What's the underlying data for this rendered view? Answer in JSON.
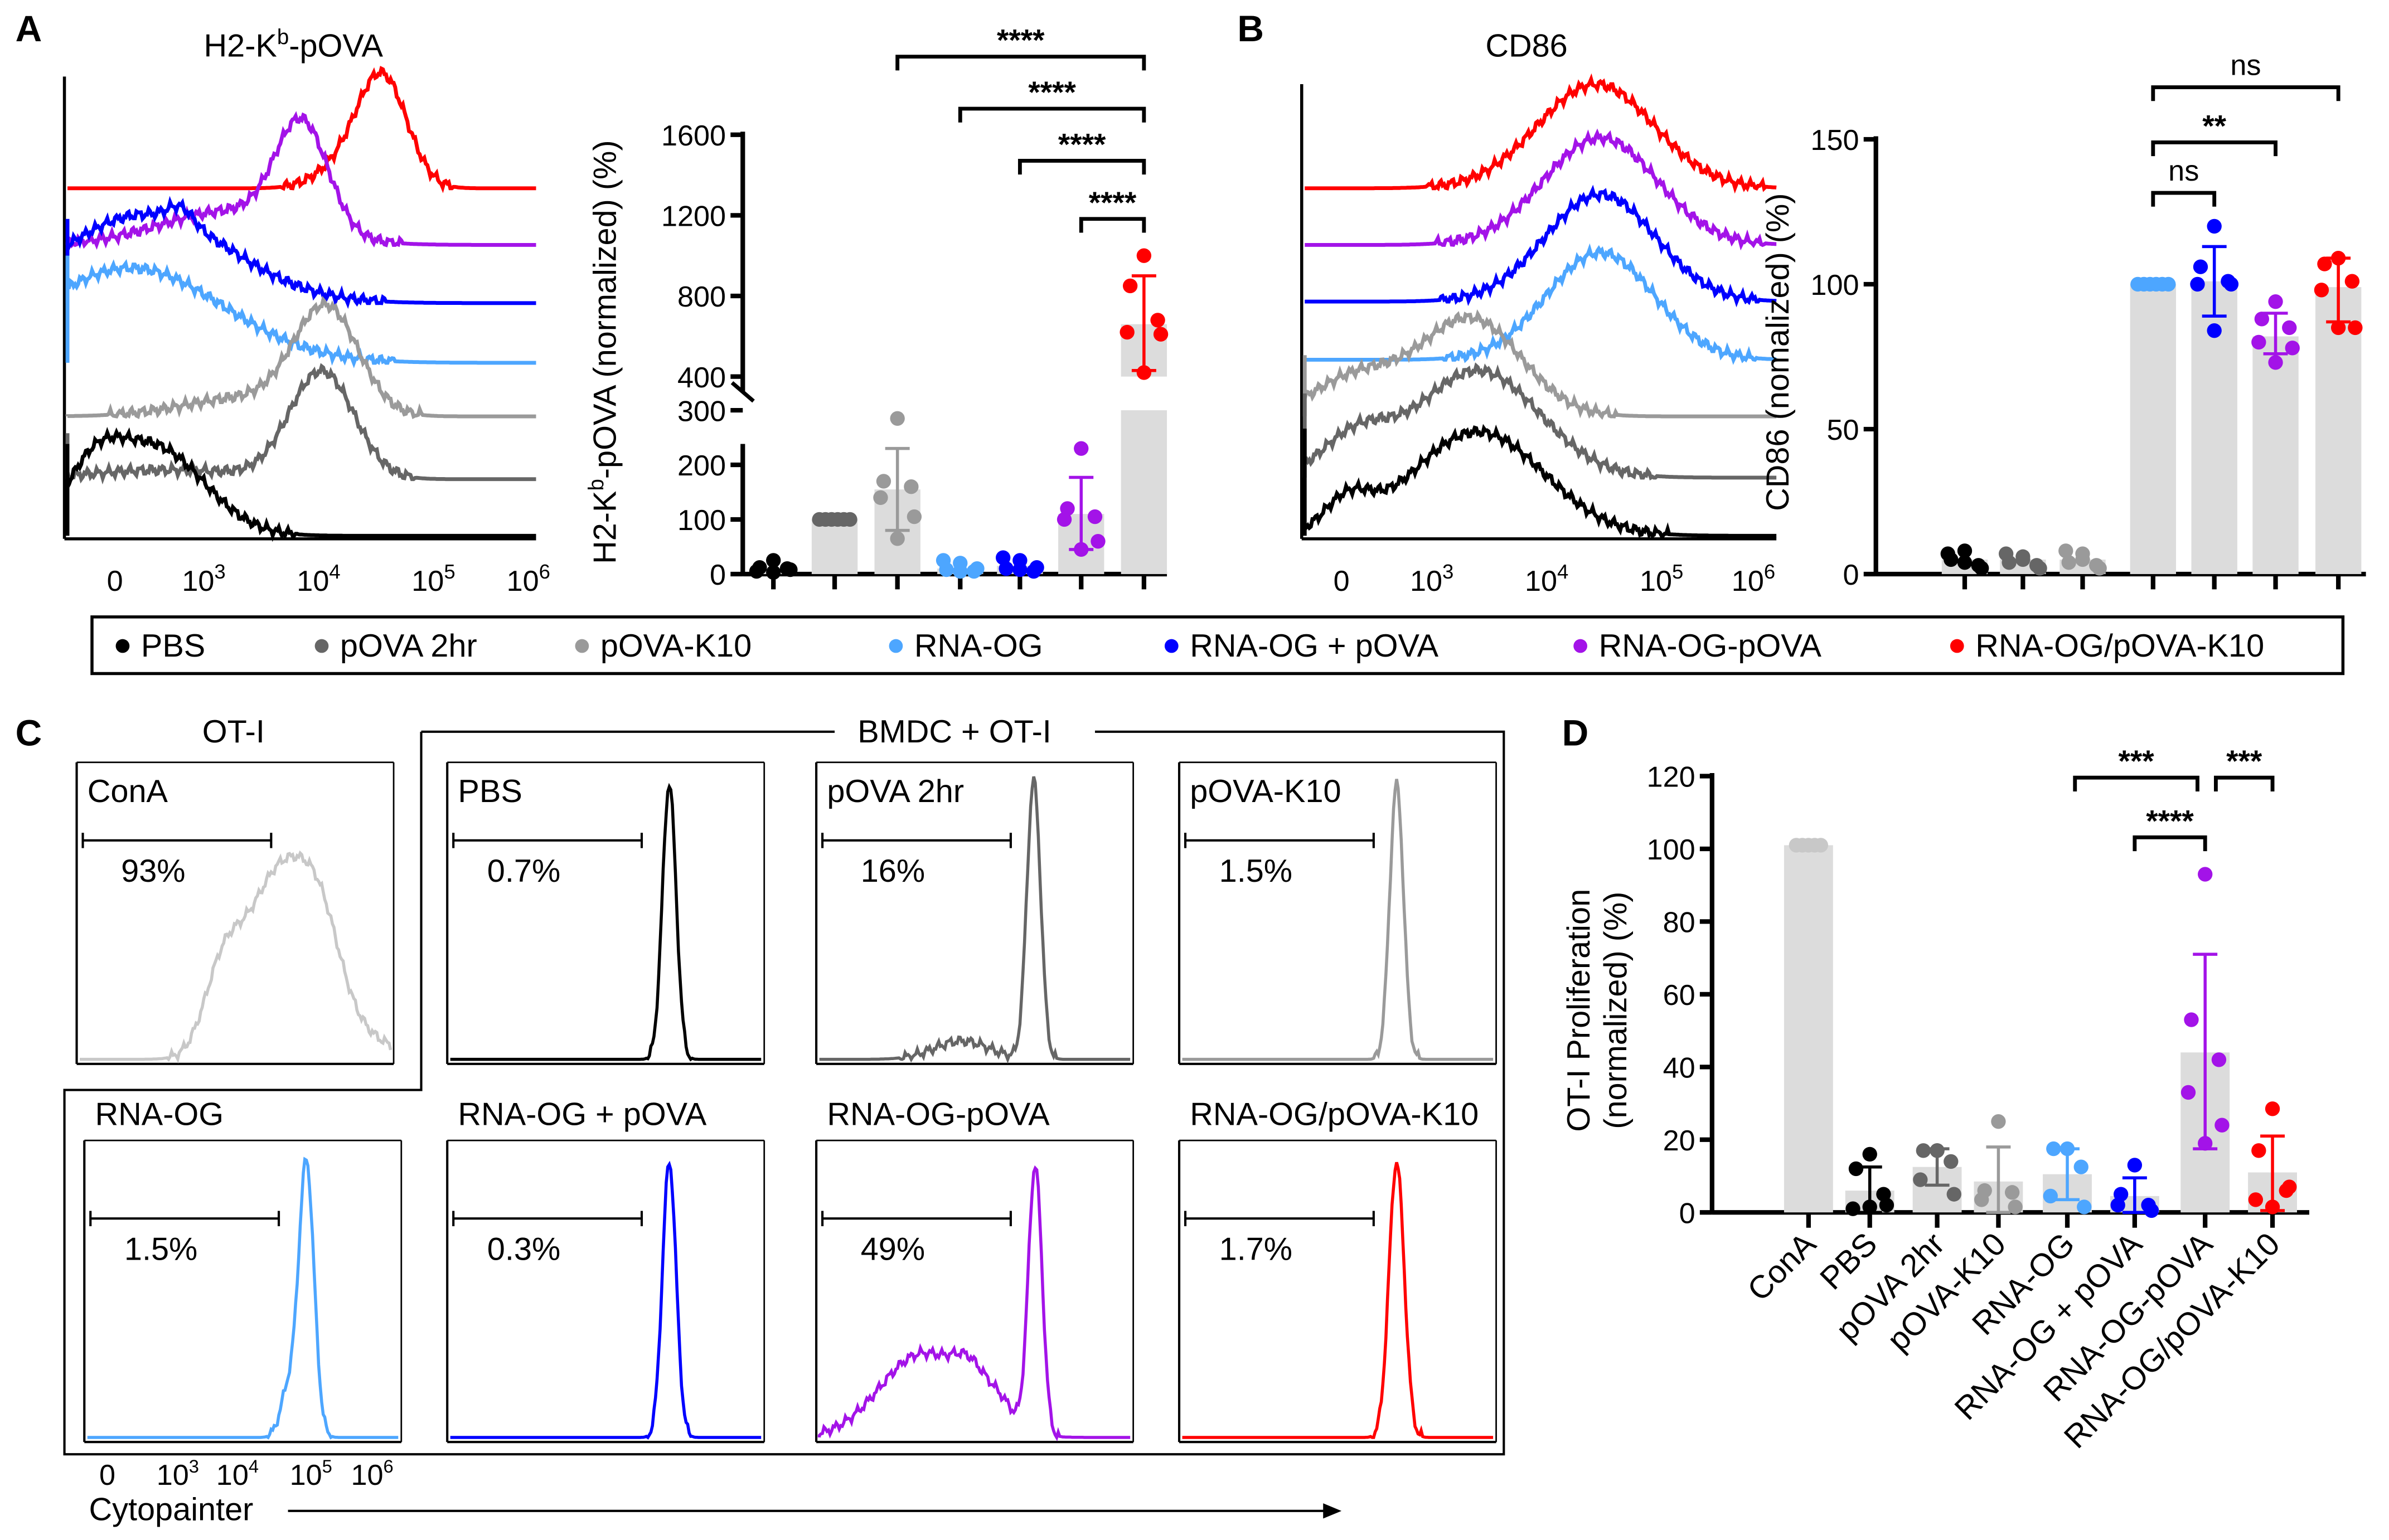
{
  "panels": {
    "a": "A",
    "b": "B",
    "c": "C",
    "d": "D"
  },
  "colors": {
    "PBS": "#000000",
    "pOVA 2hr": "#666666",
    "pOVA-K10": "#9a9a9a",
    "RNA-OG": "#4da6ff",
    "RNA-OG + pOVA": "#0000ff",
    "RNA-OG-pOVA": "#a313e8",
    "RNA-OG/pOVA-K10": "#ff0000",
    "bar": "#dcdcdc",
    "ConA": "#c8c8c8"
  },
  "legend": [
    "PBS",
    "pOVA 2hr",
    "pOVA-K10",
    "RNA-OG",
    "RNA-OG + pOVA",
    "RNA-OG-pOVA",
    "RNA-OG/pOVA-K10"
  ],
  "hist_a": {
    "title_main": "H2-K",
    "title_sup": "b",
    "title_rest": "-pOVA",
    "xticks": [
      {
        "b": "0",
        "e": ""
      },
      {
        "b": "10",
        "e": "3"
      },
      {
        "b": "10",
        "e": "4"
      },
      {
        "b": "10",
        "e": "5"
      },
      {
        "b": "10",
        "e": "6"
      }
    ]
  },
  "hist_b": {
    "title": "CD86",
    "xticks": [
      {
        "b": "0",
        "e": ""
      },
      {
        "b": "10",
        "e": "3"
      },
      {
        "b": "10",
        "e": "4"
      },
      {
        "b": "10",
        "e": "5"
      },
      {
        "b": "10",
        "e": "6"
      }
    ]
  },
  "panel_c": {
    "group_ot1": "OT-I",
    "group_bmdc": "BMDC + OT-I",
    "xlabel": "Cytopainter",
    "xticks": [
      {
        "b": "0",
        "e": ""
      },
      {
        "b": "10",
        "e": "3"
      },
      {
        "b": "10",
        "e": "4"
      },
      {
        "b": "10",
        "e": "5"
      },
      {
        "b": "10",
        "e": "6"
      }
    ],
    "plots": [
      {
        "label": "ConA",
        "percent": "93%",
        "color_key": "ConA"
      },
      {
        "label": "PBS",
        "percent": "0.7%",
        "color_key": "PBS"
      },
      {
        "label": "pOVA 2hr",
        "percent": "16%",
        "color_key": "pOVA 2hr"
      },
      {
        "label": "pOVA-K10",
        "percent": "1.5%",
        "color_key": "pOVA-K10"
      },
      {
        "label": "RNA-OG",
        "percent": "1.5%",
        "color_key": "RNA-OG"
      },
      {
        "label": "RNA-OG + pOVA",
        "percent": "0.3%",
        "color_key": "RNA-OG + pOVA"
      },
      {
        "label": "RNA-OG-pOVA",
        "percent": "49%",
        "color_key": "RNA-OG-pOVA"
      },
      {
        "label": "RNA-OG/pOVA-K10",
        "percent": "1.7%",
        "color_key": "RNA-OG/pOVA-K10"
      }
    ]
  },
  "chart_data": [
    {
      "id": "A",
      "type": "bar",
      "title": "",
      "ylabel_main": "H2-K",
      "ylabel_sup": "b",
      "ylabel_rest": "-pOVA (normalized) (%)",
      "ylim": [
        0,
        1600
      ],
      "axis_break": [
        300,
        400
      ],
      "yticks": [
        "0",
        "100",
        "200",
        "300",
        "400",
        "800",
        "1200",
        "1600"
      ],
      "categories": [
        "PBS",
        "pOVA 2hr",
        "pOVA-K10",
        "RNA-OG",
        "RNA-OG + pOVA",
        "RNA-OG-pOVA",
        "RNA-OG/pOVA-K10"
      ],
      "means": [
        10,
        100,
        155,
        10,
        15,
        110,
        660
      ],
      "sd_range": [
        null,
        null,
        [
          80,
          230
        ],
        null,
        null,
        [
          45,
          177
        ],
        [
          430,
          900
        ]
      ],
      "points": [
        [
          25,
          12,
          10,
          5,
          8,
          3
        ],
        [
          100,
          100,
          100,
          100,
          100,
          100
        ],
        [
          285,
          170,
          160,
          140,
          105,
          65
        ],
        [
          20,
          8,
          5,
          25,
          10,
          5
        ],
        [
          25,
          10,
          5,
          30,
          12,
          8
        ],
        [
          230,
          120,
          105,
          100,
          60,
          45
        ],
        [
          1000,
          850,
          680,
          620,
          610,
          420
        ]
      ],
      "significance": [
        {
          "from": 2,
          "to": 6,
          "label": "****"
        },
        {
          "from": 3,
          "to": 6,
          "label": "****"
        },
        {
          "from": 4,
          "to": 6,
          "label": "****"
        },
        {
          "from": 5,
          "to": 6,
          "label": "****"
        }
      ]
    },
    {
      "id": "B",
      "type": "bar",
      "ylabel": "CD86 (nomalized) (%)",
      "ylim": [
        0,
        150
      ],
      "yticks": [
        "0",
        "50",
        "100",
        "150"
      ],
      "categories": [
        "PBS",
        "pOVA 2hr",
        "pOVA-K10",
        "RNA-OG",
        "RNA-OG + pOVA",
        "RNA-OG-pOVA",
        "RNA-OG/pOVA-K10"
      ],
      "means": [
        5,
        5,
        5,
        100,
        101,
        82,
        99
      ],
      "sd_range": [
        null,
        null,
        null,
        null,
        [
          89,
          113
        ],
        [
          76,
          90
        ],
        [
          87,
          109
        ]
      ],
      "points": [
        [
          8,
          5,
          3,
          7,
          2,
          4
        ],
        [
          6,
          4,
          3,
          7,
          2,
          5
        ],
        [
          7,
          4,
          3,
          8,
          2,
          5
        ],
        [
          100,
          100,
          100,
          100,
          100,
          100
        ],
        [
          120,
          106,
          101,
          100,
          100,
          84
        ],
        [
          94,
          88,
          85,
          80,
          78,
          73
        ],
        [
          109,
          107,
          101,
          98,
          85,
          85
        ]
      ],
      "significance": [
        {
          "from": 3,
          "to": 6,
          "label": "ns"
        },
        {
          "from": 3,
          "to": 5,
          "label": "**"
        },
        {
          "from": 3,
          "to": 4,
          "label": "ns"
        }
      ]
    },
    {
      "id": "D",
      "type": "bar",
      "ylabel_line1": "OT-I Proliferation",
      "ylabel_line2": "(normalized) (%)",
      "ylim": [
        0,
        120
      ],
      "yticks": [
        "0",
        "20",
        "40",
        "60",
        "80",
        "100",
        "120"
      ],
      "categories": [
        "ConA",
        "PBS",
        "pOVA 2hr",
        "pOVA-K10",
        "RNA-OG",
        "RNA-OG + pOVA",
        "RNA-OG-pOVA",
        "RNA-OG/pOVA-K10"
      ],
      "means": [
        101,
        6,
        12.5,
        8.5,
        10.5,
        4.5,
        44,
        11
      ],
      "sd_range": [
        null,
        [
          0,
          12.5
        ],
        [
          7.5,
          17.5
        ],
        [
          0,
          18
        ],
        [
          3.5,
          17.5
        ],
        [
          0,
          9.5
        ],
        [
          17.5,
          71
        ],
        [
          0.5,
          21
        ]
      ],
      "points": [
        [
          101,
          101,
          101,
          101,
          101
        ],
        [
          16,
          12,
          5,
          1,
          2,
          1.5
        ],
        [
          17,
          17,
          14,
          9,
          5,
          17
        ],
        [
          25,
          6,
          5.5,
          3.5,
          1.5
        ],
        [
          17.5,
          17.5,
          12.5,
          4.5,
          1.5
        ],
        [
          13,
          5,
          2,
          2,
          0.5
        ],
        [
          93,
          53,
          42,
          33,
          24,
          19
        ],
        [
          28.5,
          17,
          6,
          3.5,
          7,
          1.5
        ]
      ],
      "significance": [
        {
          "from": 4,
          "to": 6,
          "label": "***"
        },
        {
          "from": 6,
          "to": 7,
          "label": "***"
        },
        {
          "from": 5,
          "to": 6,
          "label": "****"
        }
      ]
    }
  ]
}
